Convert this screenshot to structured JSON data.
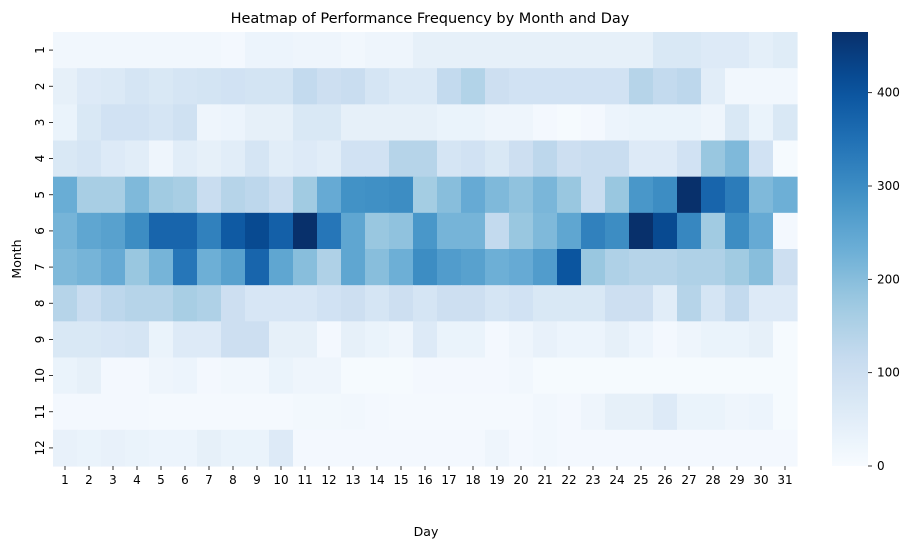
{
  "chart_data": {
    "type": "heatmap",
    "title": "Heatmap of Performance Frequency by Month and Day",
    "xlabel": "Day",
    "ylabel": "Month",
    "x_categories": [
      "1",
      "2",
      "3",
      "4",
      "5",
      "6",
      "7",
      "8",
      "9",
      "10",
      "11",
      "12",
      "13",
      "14",
      "15",
      "16",
      "17",
      "18",
      "19",
      "20",
      "21",
      "22",
      "23",
      "24",
      "25",
      "26",
      "27",
      "28",
      "29",
      "30",
      "31"
    ],
    "y_categories": [
      "1",
      "2",
      "3",
      "4",
      "5",
      "6",
      "7",
      "8",
      "9",
      "10",
      "11",
      "12"
    ],
    "colormap": "Blues",
    "color_range": [
      0,
      465
    ],
    "colorbar_ticks": [
      0,
      100,
      200,
      300,
      400
    ],
    "colorbar_tick_labels": [
      "0",
      "100",
      "200",
      "300",
      "400"
    ],
    "values": [
      [
        15,
        15,
        15,
        15,
        15,
        15,
        15,
        10,
        25,
        25,
        20,
        20,
        15,
        20,
        20,
        40,
        40,
        40,
        40,
        40,
        40,
        40,
        40,
        40,
        40,
        70,
        70,
        60,
        60,
        45,
        55
      ],
      [
        40,
        60,
        65,
        80,
        70,
        80,
        85,
        90,
        85,
        85,
        120,
        100,
        110,
        80,
        65,
        65,
        120,
        145,
        100,
        90,
        90,
        90,
        90,
        90,
        140,
        120,
        130,
        50,
        15,
        15,
        15
      ],
      [
        30,
        70,
        90,
        90,
        80,
        95,
        20,
        25,
        40,
        40,
        70,
        70,
        40,
        40,
        40,
        40,
        30,
        30,
        20,
        20,
        10,
        5,
        10,
        25,
        30,
        30,
        30,
        20,
        70,
        30,
        70
      ],
      [
        70,
        80,
        60,
        50,
        20,
        50,
        40,
        50,
        80,
        50,
        60,
        50,
        90,
        90,
        140,
        140,
        80,
        90,
        70,
        100,
        130,
        100,
        110,
        110,
        60,
        60,
        90,
        180,
        210,
        90,
        5
      ],
      [
        235,
        160,
        160,
        210,
        170,
        160,
        110,
        140,
        130,
        110,
        170,
        240,
        290,
        295,
        300,
        165,
        200,
        240,
        210,
        190,
        215,
        180,
        110,
        180,
        280,
        300,
        465,
        370,
        330,
        210,
        230
      ],
      [
        220,
        250,
        260,
        300,
        370,
        370,
        320,
        390,
        420,
        380,
        465,
        340,
        250,
        180,
        190,
        280,
        220,
        220,
        120,
        180,
        210,
        250,
        320,
        300,
        465,
        420,
        310,
        170,
        300,
        240,
        10
      ],
      [
        210,
        220,
        240,
        180,
        220,
        340,
        230,
        260,
        370,
        250,
        200,
        150,
        250,
        200,
        230,
        300,
        270,
        260,
        230,
        240,
        270,
        400,
        180,
        150,
        140,
        140,
        150,
        150,
        170,
        200,
        100
      ],
      [
        140,
        110,
        130,
        140,
        140,
        160,
        150,
        100,
        75,
        75,
        75,
        90,
        100,
        80,
        100,
        80,
        100,
        100,
        80,
        90,
        70,
        70,
        70,
        100,
        100,
        50,
        140,
        80,
        120,
        60,
        60
      ],
      [
        70,
        70,
        75,
        80,
        30,
        60,
        60,
        100,
        100,
        40,
        40,
        10,
        40,
        30,
        20,
        60,
        30,
        30,
        10,
        20,
        35,
        25,
        25,
        40,
        25,
        10,
        20,
        30,
        30,
        40,
        5
      ],
      [
        30,
        40,
        10,
        10,
        20,
        25,
        10,
        15,
        15,
        30,
        20,
        20,
        5,
        5,
        5,
        10,
        10,
        10,
        10,
        15,
        5,
        5,
        5,
        5,
        5,
        5,
        5,
        5,
        5,
        5,
        5
      ],
      [
        10,
        10,
        10,
        10,
        8,
        8,
        8,
        8,
        8,
        8,
        12,
        12,
        15,
        10,
        8,
        8,
        8,
        8,
        8,
        8,
        15,
        10,
        20,
        40,
        40,
        60,
        30,
        30,
        20,
        25,
        5
      ],
      [
        35,
        30,
        35,
        30,
        25,
        25,
        40,
        30,
        30,
        60,
        10,
        10,
        10,
        10,
        10,
        10,
        10,
        10,
        20,
        10,
        15,
        10,
        10,
        10,
        10,
        10,
        10,
        10,
        10,
        10,
        10
      ]
    ]
  }
}
